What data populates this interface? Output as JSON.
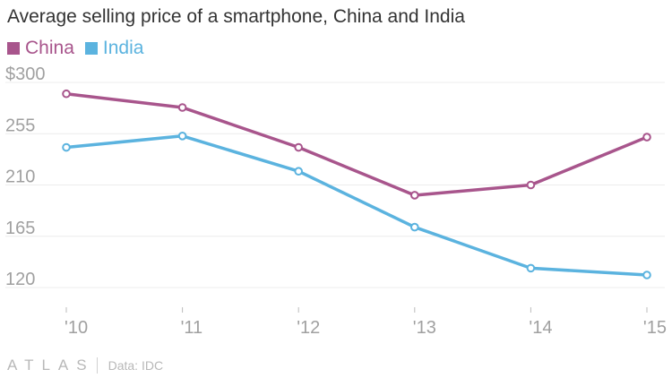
{
  "chart_data": {
    "type": "line",
    "title": "Average selling price of a smartphone, China and India",
    "categories": [
      "'10",
      "'11",
      "'12",
      "'13",
      "'14",
      "'15"
    ],
    "series": [
      {
        "name": "China",
        "color": "#a8558c",
        "values": [
          290,
          278,
          243,
          201,
          210,
          252
        ]
      },
      {
        "name": "India",
        "color": "#5bb3df",
        "values": [
          243,
          253,
          222,
          173,
          137,
          131
        ]
      }
    ],
    "y_ticks": [
      "$300",
      "255",
      "210",
      "165",
      "120"
    ],
    "y_tick_values": [
      300,
      255,
      210,
      165,
      120
    ],
    "ylim": [
      105,
      305
    ],
    "grid": true,
    "legend_position": "top-left"
  },
  "footer": {
    "logo": "ATLAS",
    "source": "Data: IDC"
  },
  "colors": {
    "gridline": "#ececec",
    "axis_text": "#a0a0a0",
    "title_text": "#333333"
  }
}
